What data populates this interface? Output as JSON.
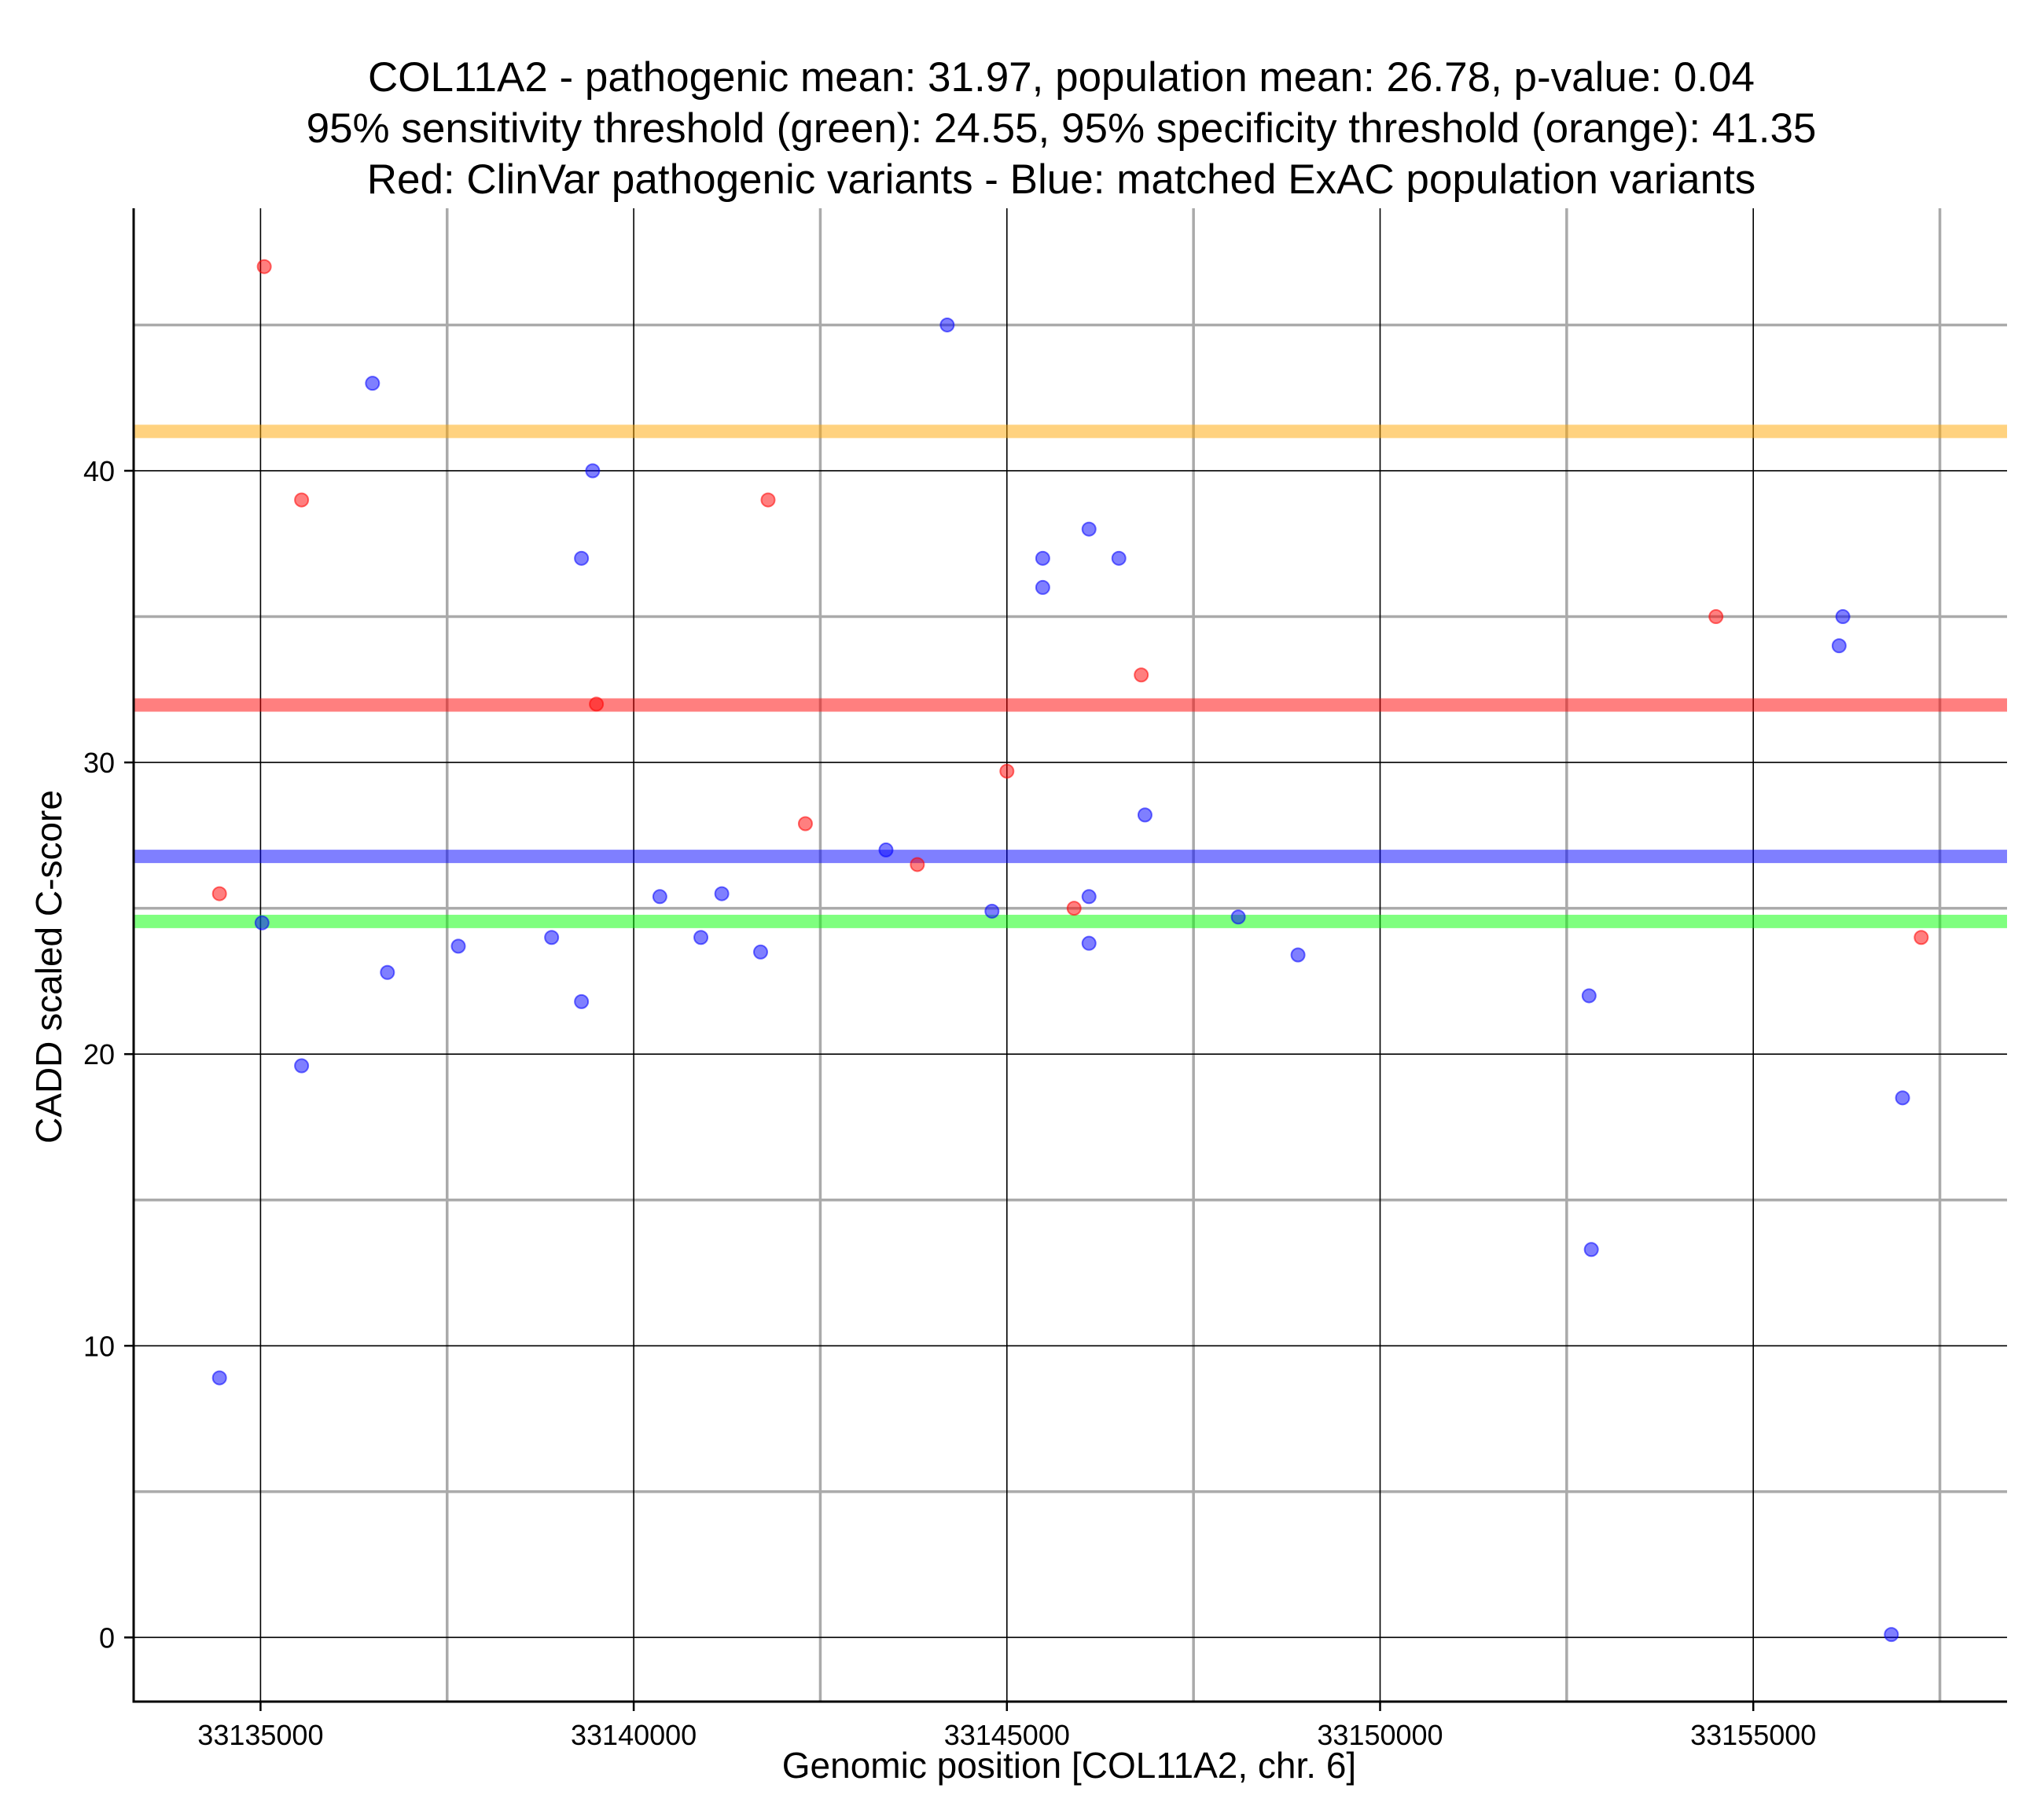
{
  "chart_data": {
    "type": "scatter",
    "title": [
      "COL11A2 - pathogenic mean: 31.97, population mean: 26.78, p-value: 0.04",
      "95% sensitivity threshold (green): 24.55, 95% specificity threshold (orange): 41.35",
      "Red: ClinVar pathogenic variants - Blue: matched ExAC population variants"
    ],
    "xlabel": "Genomic position [COL11A2, chr. 6]",
    "ylabel": "CADD scaled C-score",
    "xlim": [
      33133300,
      33158400
    ],
    "ylim": [
      -2.2,
      49
    ],
    "x_ticks": [
      33135000,
      33140000,
      33145000,
      33150000,
      33155000
    ],
    "x_tick_labels": [
      "33135000",
      "33140000",
      "33145000",
      "33150000",
      "33155000"
    ],
    "y_ticks": [
      0,
      10,
      20,
      30,
      40
    ],
    "y_tick_labels": [
      "0",
      "10",
      "20",
      "30",
      "40"
    ],
    "x_minor_grid": [
      33137500,
      33142500,
      33147500,
      33152500,
      33157500
    ],
    "y_minor_grid": [
      5,
      15,
      25,
      35,
      45
    ],
    "colors": {
      "pathogenic": "#ff0000",
      "population": "#0000ff",
      "sensitivity": "#00ff00",
      "specificity": "#ffa500",
      "major_grid": "#000000",
      "minor_grid": "#aaaaaa"
    },
    "reference_lines": [
      {
        "name": "population-mean",
        "value": 26.78,
        "color": "#0000ff"
      },
      {
        "name": "pathogenic-mean",
        "value": 31.97,
        "color": "#ff0000"
      },
      {
        "name": "sensitivity-threshold",
        "value": 24.55,
        "color": "#00ff00"
      },
      {
        "name": "specificity-threshold",
        "value": 41.35,
        "color": "#ffa500"
      }
    ],
    "series": [
      {
        "name": "ClinVar pathogenic variants",
        "color": "#ff0000",
        "points": [
          [
            33134450,
            25.5
          ],
          [
            33135050,
            47.0
          ],
          [
            33135550,
            39.0
          ],
          [
            33139500,
            32.0
          ],
          [
            33141800,
            39.0
          ],
          [
            33142300,
            27.9
          ],
          [
            33143800,
            26.5
          ],
          [
            33145000,
            29.7
          ],
          [
            33145900,
            25.0
          ],
          [
            33146800,
            33.0
          ],
          [
            33154500,
            35.0
          ],
          [
            33157250,
            24.0
          ]
        ]
      },
      {
        "name": "matched ExAC population variants",
        "color": "#0000ff",
        "points": [
          [
            33134450,
            8.9
          ],
          [
            33135020,
            24.5
          ],
          [
            33135550,
            19.6
          ],
          [
            33136500,
            43.0
          ],
          [
            33136700,
            22.8
          ],
          [
            33137650,
            23.7
          ],
          [
            33138900,
            24.0
          ],
          [
            33139300,
            37.0
          ],
          [
            33139300,
            21.8
          ],
          [
            33139450,
            40.0
          ],
          [
            33140350,
            25.4
          ],
          [
            33140900,
            24.0
          ],
          [
            33141180,
            25.5
          ],
          [
            33141700,
            23.5
          ],
          [
            33143380,
            27.0
          ],
          [
            33144200,
            45.0
          ],
          [
            33144800,
            24.9
          ],
          [
            33145480,
            37.0
          ],
          [
            33145480,
            36.0
          ],
          [
            33146100,
            38.0
          ],
          [
            33146100,
            25.4
          ],
          [
            33146100,
            23.8
          ],
          [
            33146500,
            37.0
          ],
          [
            33146850,
            28.2
          ],
          [
            33148100,
            24.7
          ],
          [
            33148900,
            23.4
          ],
          [
            33152800,
            22.0
          ],
          [
            33152830,
            13.3
          ],
          [
            33156150,
            34.0
          ],
          [
            33156200,
            35.0
          ],
          [
            33156850,
            0.1
          ],
          [
            33157000,
            18.5
          ]
        ]
      }
    ]
  }
}
